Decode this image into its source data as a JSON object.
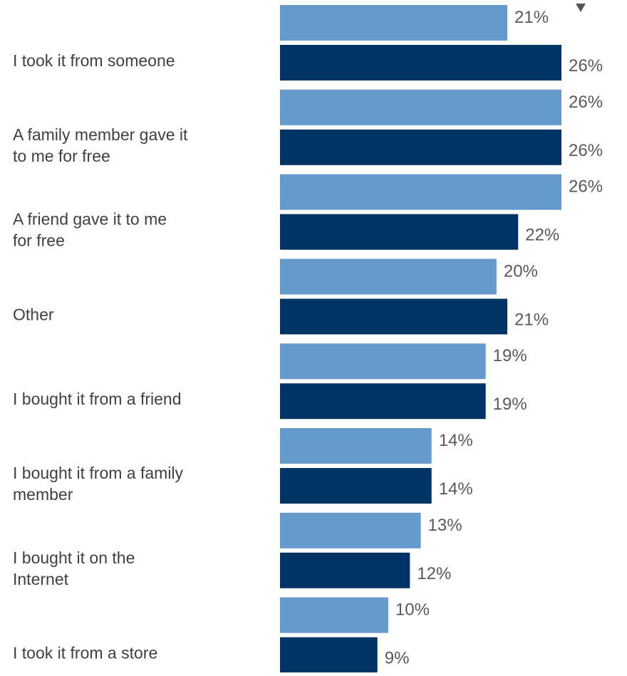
{
  "colors": {
    "series_light": "#6699cc",
    "series_dark": "#003366",
    "label_text": "#404040",
    "value_text": "#595959",
    "marker": "#595959"
  },
  "icons": {
    "corner_marker": "triangle-down-icon"
  },
  "chart_data": {
    "type": "bar",
    "orientation": "horizontal",
    "title": "",
    "xlabel": "",
    "ylabel": "",
    "xlim": [
      0,
      26
    ],
    "grid": false,
    "legend": "none",
    "categories": [
      "I took it from someone",
      "A family member gave it to me for free",
      "A friend gave it to me for free",
      "Other",
      "I bought it from a friend",
      "I bought it from a family member",
      "I bought it on the Internet",
      "I took it from a store"
    ],
    "category_lines": [
      [
        "I took it from someone"
      ],
      [
        "A family member gave it",
        "to me for free"
      ],
      [
        "A friend gave it to me",
        "for free"
      ],
      [
        "Other"
      ],
      [
        "I bought it from a friend"
      ],
      [
        "I bought it from a family",
        "member"
      ],
      [
        "I bought it on the",
        "Internet"
      ],
      [
        "I took it from a store"
      ]
    ],
    "series": [
      {
        "values": [
          21,
          26,
          26,
          20,
          19,
          14,
          13,
          10
        ],
        "labels": [
          "21%",
          "26%",
          "26%",
          "20%",
          "19%",
          "14%",
          "13%",
          "10%"
        ],
        "color": "#6699cc"
      },
      {
        "values": [
          26,
          26,
          22,
          21,
          19,
          14,
          12,
          9
        ],
        "labels": [
          "26%",
          "26%",
          "22%",
          "21%",
          "19%",
          "14%",
          "12%",
          "9%"
        ],
        "color": "#003366"
      }
    ]
  }
}
